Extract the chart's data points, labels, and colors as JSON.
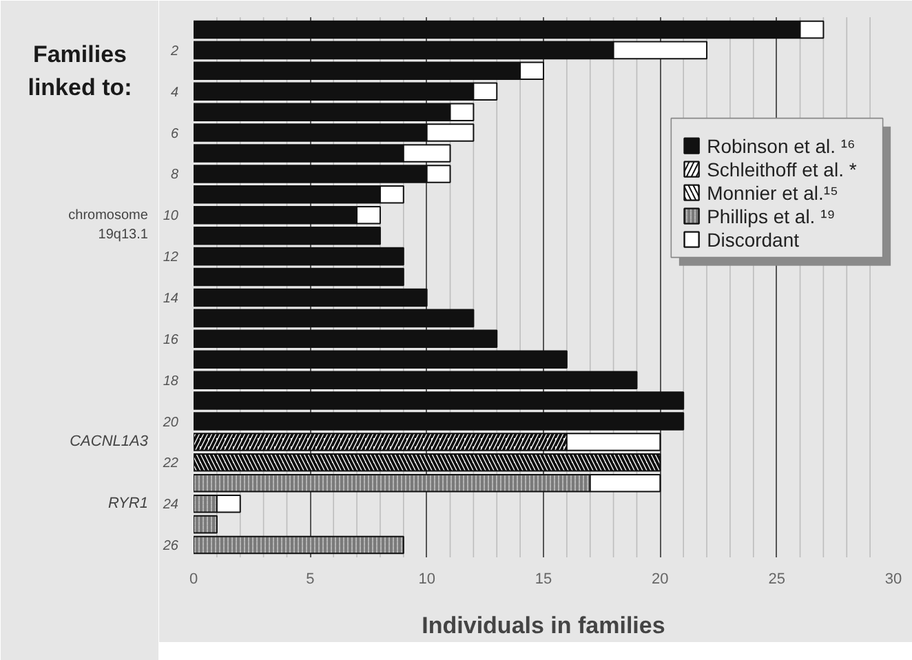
{
  "chart_data": {
    "type": "bar",
    "orientation": "horizontal",
    "stacked": true,
    "xlabel": "Individuals in families",
    "categories": [
      null,
      "2",
      null,
      "4",
      null,
      "6",
      null,
      "8",
      null,
      "10",
      null,
      "12",
      null,
      "14",
      null,
      "16",
      null,
      "18",
      null,
      "20",
      null,
      "22",
      null,
      "24",
      null,
      "26"
    ],
    "series": [
      {
        "name": "Robinson et al. ¹⁶",
        "color": "#111111",
        "values": [
          26,
          18,
          14,
          12,
          11,
          10,
          9,
          10,
          8,
          7,
          8,
          9,
          9,
          10,
          12,
          13,
          16,
          19,
          21,
          21,
          null,
          null,
          null,
          null,
          null,
          null
        ]
      },
      {
        "name": "Schleithoff et al. *",
        "color": "#ffffff",
        "values": [
          null,
          null,
          null,
          null,
          null,
          null,
          null,
          null,
          null,
          null,
          null,
          null,
          null,
          null,
          null,
          null,
          null,
          null,
          null,
          null,
          16,
          null,
          null,
          null,
          null,
          null
        ]
      },
      {
        "name": "Monnier et al.¹⁵",
        "color": "#ffffff",
        "values": [
          null,
          null,
          null,
          null,
          null,
          null,
          null,
          null,
          null,
          null,
          null,
          null,
          null,
          null,
          null,
          null,
          null,
          null,
          null,
          null,
          null,
          20,
          null,
          null,
          null,
          null
        ]
      },
      {
        "name": "Phillips et al. ¹⁹",
        "color": "#7a7a7a",
        "values": [
          null,
          null,
          null,
          null,
          null,
          null,
          null,
          null,
          null,
          null,
          null,
          null,
          null,
          null,
          null,
          null,
          null,
          null,
          null,
          null,
          null,
          null,
          17,
          1,
          1,
          9
        ]
      },
      {
        "name": "Discordant",
        "color": "#ffffff",
        "values": [
          1,
          4,
          1,
          1,
          1,
          2,
          2,
          1,
          1,
          1,
          null,
          null,
          null,
          null,
          null,
          null,
          null,
          null,
          null,
          null,
          4,
          null,
          3,
          1,
          null,
          null
        ]
      }
    ],
    "xlim": [
      0,
      30
    ],
    "xticks": [
      0,
      {
        "value": 1,
        "label": null
      },
      {
        "value": 2,
        "label": null
      },
      {
        "value": 3,
        "label": null
      },
      {
        "value": 4,
        "label": null
      },
      5,
      {
        "value": 6,
        "label": null
      },
      {
        "value": 7,
        "label": null
      },
      {
        "value": 8,
        "label": null
      },
      {
        "value": 9,
        "label": null
      },
      10,
      {
        "value": 11,
        "label": null
      },
      {
        "value": 12,
        "label": null
      },
      {
        "value": 13,
        "label": null
      },
      {
        "value": 14,
        "label": null
      },
      15,
      {
        "value": 16,
        "label": null
      },
      {
        "value": 17,
        "label": null
      },
      {
        "value": 18,
        "label": null
      },
      {
        "value": 19,
        "label": null
      },
      20,
      {
        "value": 21,
        "label": null
      },
      {
        "value": 22,
        "label": null
      },
      {
        "value": 23,
        "label": null
      },
      {
        "value": 24,
        "label": null
      },
      25,
      {
        "value": 26,
        "label": null
      },
      {
        "value": 27,
        "label": null
      },
      {
        "value": 28,
        "label": null
      },
      {
        "value": 29,
        "label": null
      },
      30
    ],
    "grid": "x",
    "legend": "right",
    "annotations": [
      "Families\nlinked to:",
      "chromosome\n19q13.1",
      "CACNL1A3",
      "RYR1"
    ]
  }
}
